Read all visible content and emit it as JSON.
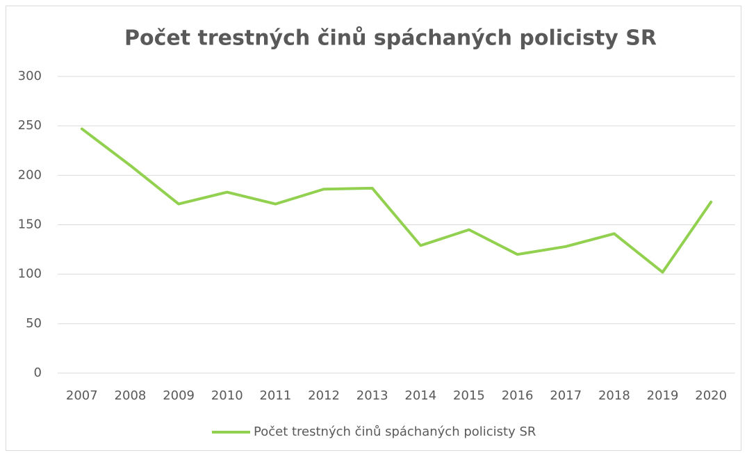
{
  "chart_data": {
    "type": "line",
    "title": "Počet trestných činů spáchaných policisty SR",
    "categories": [
      "2007",
      "2008",
      "2009",
      "2010",
      "2011",
      "2012",
      "2013",
      "2014",
      "2015",
      "2016",
      "2017",
      "2018",
      "2019",
      "2020"
    ],
    "series": [
      {
        "name": "Počet trestných činů spáchaných policisty SR",
        "color": "#92d050",
        "values": [
          247,
          210,
          171,
          183,
          171,
          186,
          187,
          129,
          145,
          120,
          128,
          141,
          102,
          173
        ]
      }
    ],
    "ylim": [
      0,
      300
    ],
    "yticks": [
      0,
      50,
      100,
      150,
      200,
      250,
      300
    ],
    "grid": true,
    "legend": "bottom"
  }
}
